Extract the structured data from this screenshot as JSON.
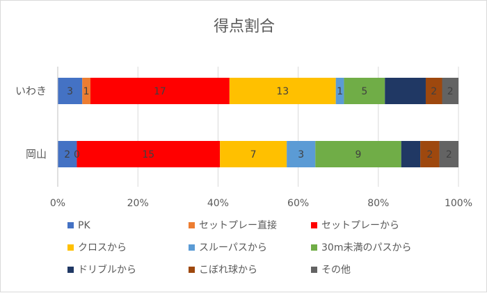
{
  "chart_data": {
    "type": "bar",
    "orientation": "horizontal",
    "stacked": "percent",
    "title": "得点割合",
    "categories": [
      "いわき",
      "岡山"
    ],
    "series": [
      {
        "name": "PK",
        "color": "#4472C4",
        "values": [
          3,
          2
        ],
        "labels": [
          "3",
          "2"
        ]
      },
      {
        "name": "セットプレー直接",
        "color": "#ED7D31",
        "values": [
          1,
          0
        ],
        "labels": [
          "1",
          "0"
        ]
      },
      {
        "name": "セットプレーから",
        "color": "#FF0000",
        "values": [
          17,
          15
        ],
        "labels": [
          "17",
          "15"
        ]
      },
      {
        "name": "クロスから",
        "color": "#FFC000",
        "values": [
          13,
          7
        ],
        "labels": [
          "13",
          "7"
        ]
      },
      {
        "name": "スルーパスから",
        "color": "#5B9BD5",
        "values": [
          1,
          3
        ],
        "labels": [
          "1",
          "3"
        ]
      },
      {
        "name": "30m未満のパスから",
        "color": "#70AD47",
        "values": [
          5,
          9
        ],
        "labels": [
          "5",
          "9"
        ]
      },
      {
        "name": "ドリブルから",
        "color": "#203864",
        "values": [
          5,
          2
        ],
        "labels": [
          "",
          ""
        ]
      },
      {
        "name": "こぼれ球から",
        "color": "#9E480E",
        "values": [
          2,
          2
        ],
        "labels": [
          "2",
          "2"
        ]
      },
      {
        "name": "その他",
        "color": "#636363",
        "values": [
          2,
          2
        ],
        "labels": [
          "2",
          "2"
        ]
      }
    ],
    "x_ticks": [
      "0%",
      "20%",
      "40%",
      "60%",
      "80%",
      "100%"
    ],
    "xlim": [
      0,
      100
    ],
    "grid": true,
    "legend_position": "bottom"
  }
}
